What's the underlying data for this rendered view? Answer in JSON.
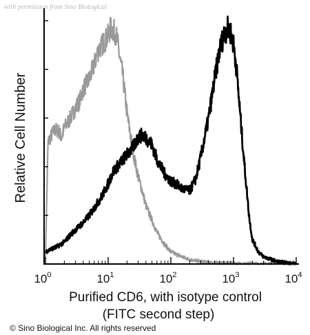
{
  "watermark": "with permission from Sino Biological",
  "copyright": "© Sino Biological Inc. All rights reserved",
  "chart_data": {
    "type": "line",
    "ylabel": "Relative Cell Number",
    "xlabel_lines": [
      "Purified CD6, with isotype control",
      "(FITC second step)"
    ],
    "x_scale": "log",
    "xlim": [
      1,
      10000
    ],
    "ylim": [
      0,
      100
    ],
    "x_ticks": [
      {
        "base": "10",
        "exp": "0",
        "value": 1
      },
      {
        "base": "10",
        "exp": "1",
        "value": 10
      },
      {
        "base": "10",
        "exp": "2",
        "value": 100
      },
      {
        "base": "10",
        "exp": "3",
        "value": 1000
      },
      {
        "base": "10",
        "exp": "4",
        "value": 10000
      }
    ],
    "series": [
      {
        "color": "#9a9a9a",
        "x": [
          1,
          1.1,
          1.25,
          1.4,
          1.6,
          1.8,
          2,
          2.5,
          3,
          3.5,
          4,
          5,
          6,
          7,
          8,
          9,
          10,
          11,
          12,
          13,
          14,
          15,
          17,
          20,
          25,
          30,
          35,
          40,
          50,
          60,
          80,
          100,
          150,
          200,
          300,
          500,
          1000,
          10000
        ],
        "y": [
          3,
          50,
          53,
          55,
          55,
          52,
          56,
          60,
          64,
          67,
          72,
          76,
          82,
          88,
          90,
          92,
          94,
          97,
          96,
          95,
          92,
          86,
          78,
          62,
          46,
          36,
          30,
          24,
          18,
          13,
          8,
          5,
          3,
          1.8,
          1,
          0.5,
          0.2,
          0
        ]
      },
      {
        "color": "#000000",
        "x": [
          1,
          1.2,
          1.5,
          2,
          2.5,
          3,
          4,
          5,
          6,
          8,
          10,
          12,
          15,
          20,
          25,
          30,
          35,
          40,
          50,
          60,
          80,
          100,
          120,
          150,
          200,
          250,
          300,
          400,
          500,
          600,
          700,
          800,
          900,
          1000,
          1100,
          1200,
          1500,
          1800,
          2000,
          2500,
          3000,
          5000,
          10000
        ],
        "y": [
          5,
          6,
          7,
          9,
          12,
          14,
          17,
          20,
          23,
          28,
          33,
          38,
          41,
          45,
          48,
          52,
          53,
          52,
          49,
          43,
          37,
          34,
          33,
          31,
          30,
          35,
          44,
          60,
          76,
          88,
          94,
          97,
          95,
          90,
          82,
          70,
          40,
          18,
          10,
          5,
          3,
          1,
          0
        ]
      }
    ]
  }
}
